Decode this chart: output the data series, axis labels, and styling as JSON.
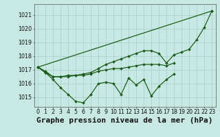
{
  "xlabel": "Graphe pression niveau de la mer (hPa)",
  "x": [
    0,
    1,
    2,
    3,
    4,
    5,
    6,
    7,
    8,
    9,
    10,
    11,
    12,
    13,
    14,
    15,
    16,
    17,
    18,
    19,
    20,
    21,
    22,
    23
  ],
  "line_zigzag": [
    1017.2,
    1016.8,
    1016.3,
    1015.7,
    1015.2,
    1014.7,
    1014.6,
    1015.2,
    1016.0,
    1016.1,
    1016.0,
    1015.2,
    1016.4,
    1015.9,
    1016.3,
    1015.1,
    1015.8,
    1016.3,
    1016.7,
    null,
    null,
    null,
    null,
    null
  ],
  "line_upper": [
    1017.2,
    1016.8,
    1016.5,
    1016.5,
    1016.6,
    1016.6,
    1016.7,
    1016.8,
    1017.1,
    1017.4,
    1017.6,
    1017.8,
    1018.0,
    1018.2,
    1018.4,
    1018.4,
    1018.2,
    1017.5,
    1018.1,
    1018.3,
    1018.5,
    1019.2,
    1020.1,
    1021.3
  ],
  "line_mid": [
    1017.2,
    1016.9,
    1016.5,
    1016.5,
    1016.5,
    1016.6,
    1016.6,
    1016.7,
    1016.9,
    1017.0,
    1017.1,
    1017.1,
    1017.2,
    1017.3,
    1017.4,
    1017.4,
    1017.4,
    1017.3,
    1017.5,
    null,
    null,
    null,
    null,
    null
  ],
  "line_diag": [
    1017.2,
    null,
    null,
    null,
    null,
    null,
    null,
    null,
    null,
    null,
    null,
    null,
    null,
    null,
    null,
    null,
    null,
    null,
    null,
    null,
    null,
    1019.2,
    1020.1,
    1021.3
  ],
  "bg_color": "#c8e8e4",
  "grid_color": "#a8ccca",
  "line_color": "#1a5c1a",
  "ylim": [
    1014.3,
    1021.8
  ],
  "yticks": [
    1015,
    1016,
    1017,
    1018,
    1019,
    1020,
    1021
  ],
  "xticks": [
    0,
    1,
    2,
    3,
    4,
    5,
    6,
    7,
    8,
    9,
    10,
    11,
    12,
    13,
    14,
    15,
    16,
    17,
    18,
    19,
    20,
    21,
    22,
    23
  ],
  "tick_fontsize": 5.8,
  "xlabel_fontsize": 8.0,
  "marker": "D",
  "marker_size": 2.0,
  "line_width": 0.9
}
